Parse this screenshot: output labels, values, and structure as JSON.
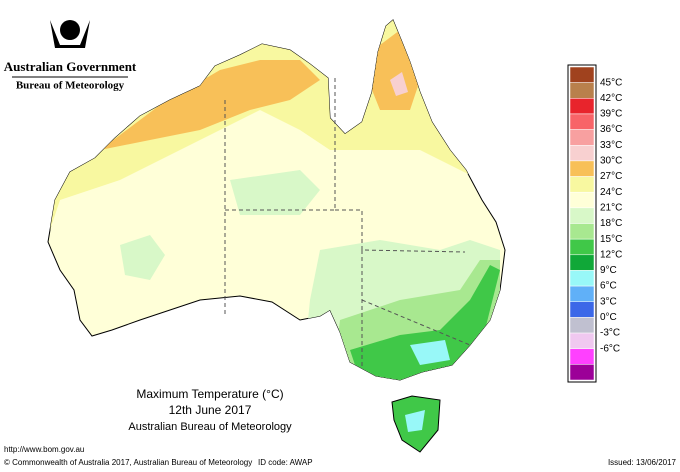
{
  "header": {
    "government": "Australian Government",
    "bureau": "Bureau of Meteorology"
  },
  "title": {
    "line1": "Maximum Temperature (°C)",
    "line2": "12th June 2017",
    "line3": "Australian Bureau of Meteorology"
  },
  "legend": {
    "labels": [
      "45°C",
      "42°C",
      "39°C",
      "36°C",
      "33°C",
      "30°C",
      "27°C",
      "24°C",
      "21°C",
      "18°C",
      "15°C",
      "12°C",
      "9°C",
      "6°C",
      "3°C",
      "0°C",
      "-3°C",
      "-6°C"
    ],
    "colors": [
      "#a0421e",
      "#b9804c",
      "#e8242c",
      "#f86468",
      "#f8a0a0",
      "#f8d0d0",
      "#f8c058",
      "#f8f8a0",
      "#ffffd8",
      "#d8f8c8",
      "#a8e890",
      "#40c848",
      "#10a838",
      "#98f8f8",
      "#60b0f8",
      "#3c68e8",
      "#c0c0d0",
      "#f0c8f0",
      "#ff40ff",
      "#9c0098"
    ]
  },
  "footer": {
    "url": "http://www.bom.gov.au",
    "copyright": "© Commonwealth of Australia 2017, Australian Bureau of Meteorology",
    "id": "ID code: AWAP",
    "issued": "Issued: 13/06/2017"
  }
}
